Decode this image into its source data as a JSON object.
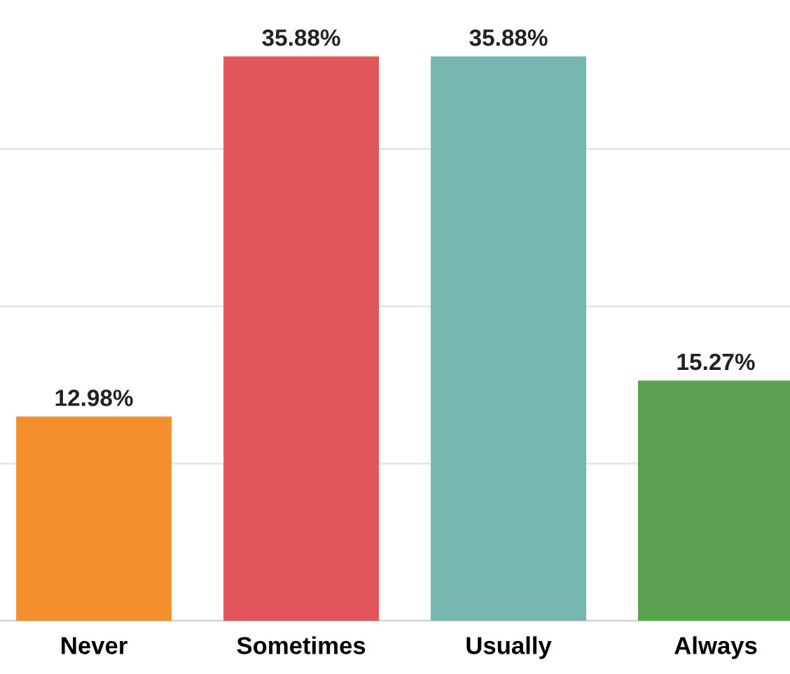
{
  "chart_data": {
    "type": "bar",
    "categories": [
      "Never",
      "Sometimes",
      "Usually",
      "Always"
    ],
    "values": [
      12.98,
      35.88,
      35.88,
      15.27
    ],
    "colors": [
      "#f28e2c",
      "#e15759",
      "#76b7b2",
      "#59a14f"
    ],
    "value_labels": [
      "12.98%",
      "35.88%",
      "35.88%",
      "15.27%"
    ],
    "yticks": [
      {
        "value": 0,
        "label": null
      },
      {
        "value": 10,
        "label": null
      },
      {
        "value": 20,
        "label": null
      },
      {
        "value": 30,
        "label": null
      }
    ],
    "tick_labels": "x",
    "grid": "y"
  }
}
